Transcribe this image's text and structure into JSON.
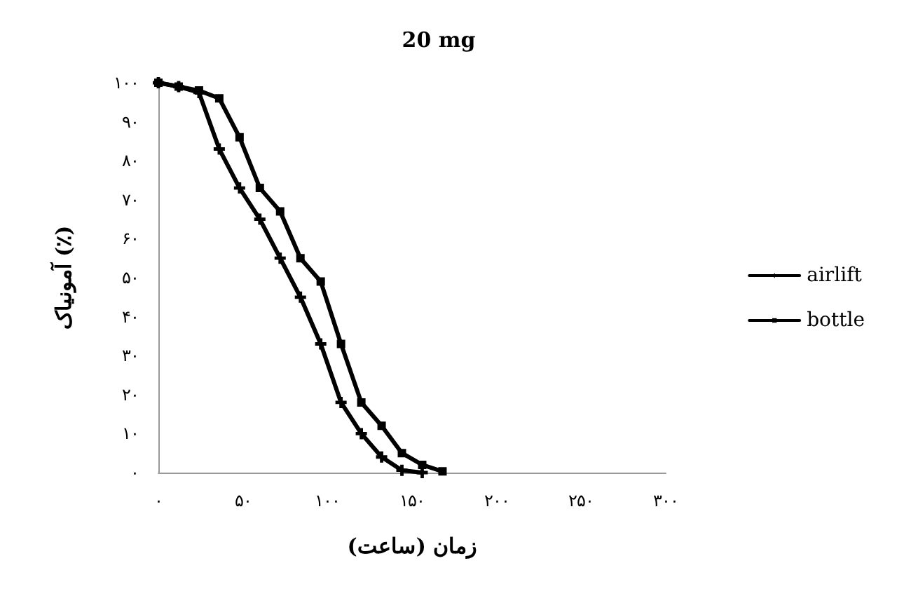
{
  "chart_data": {
    "type": "line",
    "title": "20 mg",
    "xlabel": "زمان (ساعت)",
    "ylabel": "آمونیاک (٪)",
    "xlim": [
      0,
      300
    ],
    "xticks": [
      {
        "value": 0,
        "label": "۰"
      },
      {
        "value": 50,
        "label": "۵۰"
      },
      {
        "value": 100,
        "label": "۱۰۰"
      },
      {
        "value": 150,
        "label": "۱۵۰"
      },
      {
        "value": 200,
        "label": "۲۰۰"
      },
      {
        "value": 250,
        "label": "۲۵۰"
      },
      {
        "value": 300,
        "label": "۳۰۰"
      }
    ],
    "ylim": [
      0,
      100
    ],
    "yticks": [
      {
        "value": 0,
        "label": "۰"
      },
      {
        "value": 10,
        "label": "۱۰"
      },
      {
        "value": 20,
        "label": "۲۰"
      },
      {
        "value": 30,
        "label": "۳۰"
      },
      {
        "value": 40,
        "label": "۴۰"
      },
      {
        "value": 50,
        "label": "۵۰"
      },
      {
        "value": 60,
        "label": "۶۰"
      },
      {
        "value": 70,
        "label": "۷۰"
      },
      {
        "value": 80,
        "label": "۸۰"
      },
      {
        "value": 90,
        "label": "۹۰"
      },
      {
        "value": 100,
        "label": "۱۰۰"
      }
    ],
    "grid": false,
    "legend": "right",
    "line_style": "solid",
    "series": [
      {
        "name": "airlift",
        "color": "#000000",
        "marker": "cross",
        "x": [
          0,
          12,
          24,
          36,
          48,
          60,
          72,
          84,
          96,
          108,
          120,
          132,
          144,
          156
        ],
        "values": [
          100,
          99,
          97.5,
          83,
          73,
          65,
          55,
          45,
          33,
          18,
          10,
          4,
          0.6,
          0
        ]
      },
      {
        "name": "bottle",
        "color": "#000000",
        "marker": "square",
        "x": [
          0,
          12,
          24,
          36,
          48,
          60,
          72,
          84,
          96,
          108,
          120,
          132,
          144,
          156,
          168
        ],
        "values": [
          100,
          99,
          98,
          96,
          86,
          73,
          67,
          55,
          49,
          33,
          18,
          12,
          5,
          2,
          0.3
        ]
      }
    ]
  }
}
